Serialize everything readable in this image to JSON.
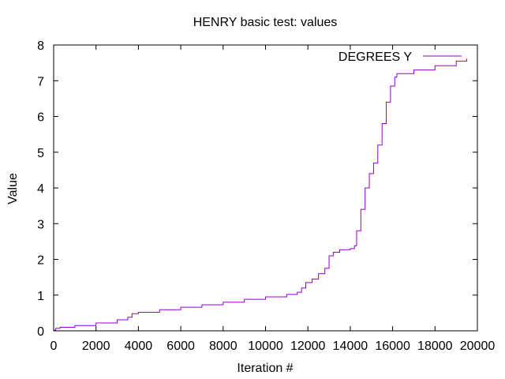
{
  "chart_data": {
    "type": "line",
    "title": "HENRY basic test: values",
    "xlabel": "Iteration #",
    "ylabel": "Value",
    "xlim": [
      0,
      20000
    ],
    "ylim": [
      0,
      8
    ],
    "x_ticks": [
      0,
      2000,
      4000,
      6000,
      8000,
      10000,
      12000,
      14000,
      16000,
      18000,
      20000
    ],
    "y_ticks": [
      0,
      1,
      2,
      3,
      4,
      5,
      6,
      7,
      8
    ],
    "grid": false,
    "legend_position": "top-right",
    "step": true,
    "series": [
      {
        "name": "DEGREES Y",
        "color": "#9400d3",
        "points": [
          [
            0,
            0.02
          ],
          [
            100,
            0.07
          ],
          [
            300,
            0.1
          ],
          [
            1000,
            0.15
          ],
          [
            2000,
            0.22
          ],
          [
            3000,
            0.31
          ],
          [
            3500,
            0.38
          ],
          [
            3700,
            0.48
          ],
          [
            4000,
            0.52
          ],
          [
            5000,
            0.59
          ],
          [
            6000,
            0.66
          ],
          [
            7000,
            0.73
          ],
          [
            8000,
            0.8
          ],
          [
            9000,
            0.88
          ],
          [
            10000,
            0.95
          ],
          [
            11000,
            1.02
          ],
          [
            11500,
            1.08
          ],
          [
            11700,
            1.2
          ],
          [
            11900,
            1.35
          ],
          [
            12200,
            1.45
          ],
          [
            12500,
            1.6
          ],
          [
            12800,
            1.75
          ],
          [
            13000,
            2.1
          ],
          [
            13200,
            2.2
          ],
          [
            13500,
            2.27
          ],
          [
            14000,
            2.3
          ],
          [
            14200,
            2.38
          ],
          [
            14300,
            2.8
          ],
          [
            14500,
            3.4
          ],
          [
            14700,
            4.0
          ],
          [
            14900,
            4.4
          ],
          [
            15100,
            4.7
          ],
          [
            15300,
            5.2
          ],
          [
            15500,
            5.8
          ],
          [
            15700,
            6.4
          ],
          [
            15900,
            6.85
          ],
          [
            16100,
            7.1
          ],
          [
            16200,
            7.2
          ],
          [
            17000,
            7.3
          ],
          [
            18000,
            7.42
          ],
          [
            19000,
            7.55
          ],
          [
            19500,
            7.62
          ]
        ]
      }
    ]
  }
}
